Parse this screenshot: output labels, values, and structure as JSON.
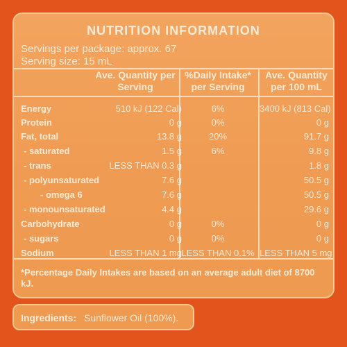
{
  "title": "NUTRITION INFORMATION",
  "servings_per_package": "Servings per package: approx. 67",
  "serving_size": "Serving size: 15 mL",
  "headers": {
    "col1": "Ave. Quantity per Serving",
    "col2": "%Daily Intake* per Serving",
    "col3": "Ave. Quantity per 100 mL"
  },
  "rows": [
    {
      "label": "Energy",
      "per_serving": "510 kJ (122 Cal)",
      "daily": "6%",
      "per_100": "3400 kJ (813 Cal)"
    },
    {
      "label": "Protein",
      "per_serving": "0 g",
      "daily": "0%",
      "per_100": "0 g"
    },
    {
      "label": "Fat, total",
      "per_serving": "13.8 g",
      "daily": "20%",
      "per_100": "91.7 g"
    },
    {
      "label": "- saturated",
      "per_serving": "1.5 g",
      "daily": "6%",
      "per_100": "9.8 g"
    },
    {
      "label": "- trans",
      "per_serving": "LESS THAN 0.3 g",
      "daily": "",
      "per_100": "1.8 g"
    },
    {
      "label": "- polyunsaturated",
      "per_serving": "7.6 g",
      "daily": "",
      "per_100": "50.5 g"
    },
    {
      "label": "- omega 6",
      "per_serving": "7.6 g",
      "daily": "",
      "per_100": "50.5 g"
    },
    {
      "label": "- monounsaturated",
      "per_serving": "4.4 g",
      "daily": "",
      "per_100": "29.6 g"
    },
    {
      "label": "Carbohydrate",
      "per_serving": "0 g",
      "daily": "0%",
      "per_100": "0 g"
    },
    {
      "label": "- sugars",
      "per_serving": "0 g",
      "daily": "0%",
      "per_100": "0 g"
    },
    {
      "label": "Sodium",
      "per_serving": "LESS THAN 1 mg",
      "daily": "LESS THAN 0.1%",
      "per_100": "LESS THAN 5 mg"
    }
  ],
  "footnote": "*Percentage Daily Intakes are based on an average adult diet of 8700 kJ.",
  "ingredients": {
    "label": "Ingredients:",
    "value": "Sunflower Oil (100%)."
  },
  "colors": {
    "background": "#e2541c",
    "panel": "#f09b53",
    "text": "#fdebd6"
  }
}
